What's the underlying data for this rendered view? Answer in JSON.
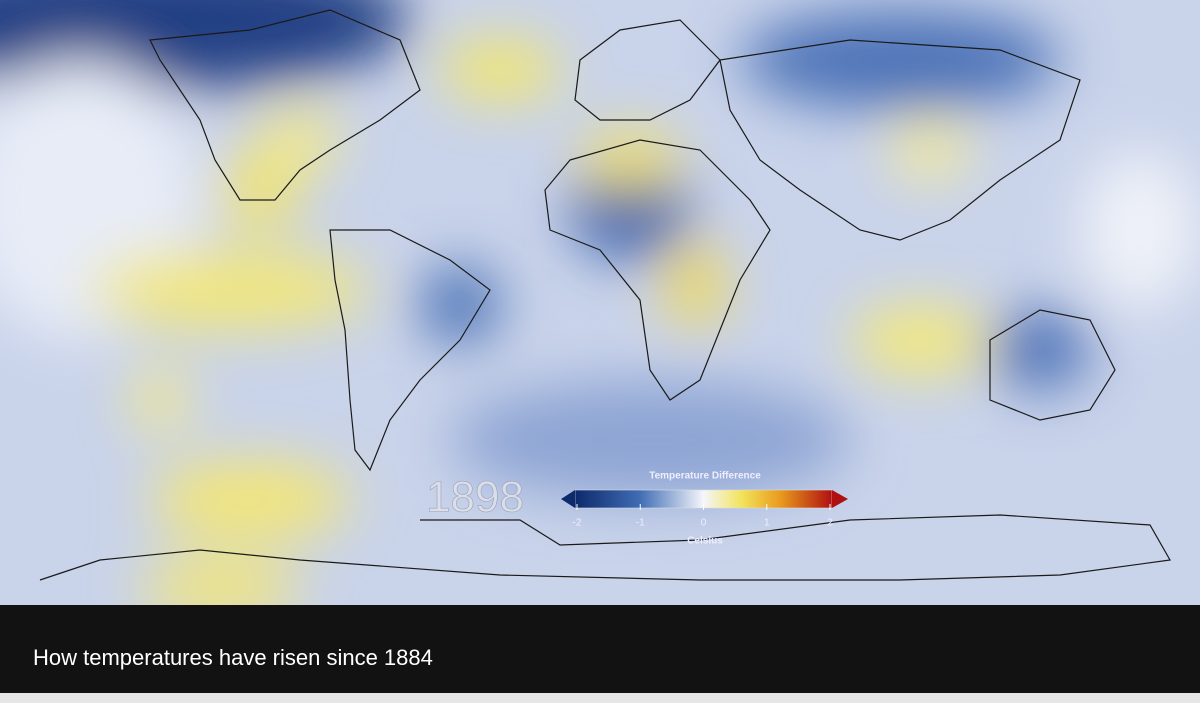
{
  "map": {
    "year": "1898",
    "legend": {
      "title": "Temperature Difference",
      "ticks": [
        -2,
        -1,
        0,
        1,
        2
      ],
      "unit": "Celsius"
    }
  },
  "caption": "How temperatures have risen since 1884"
}
